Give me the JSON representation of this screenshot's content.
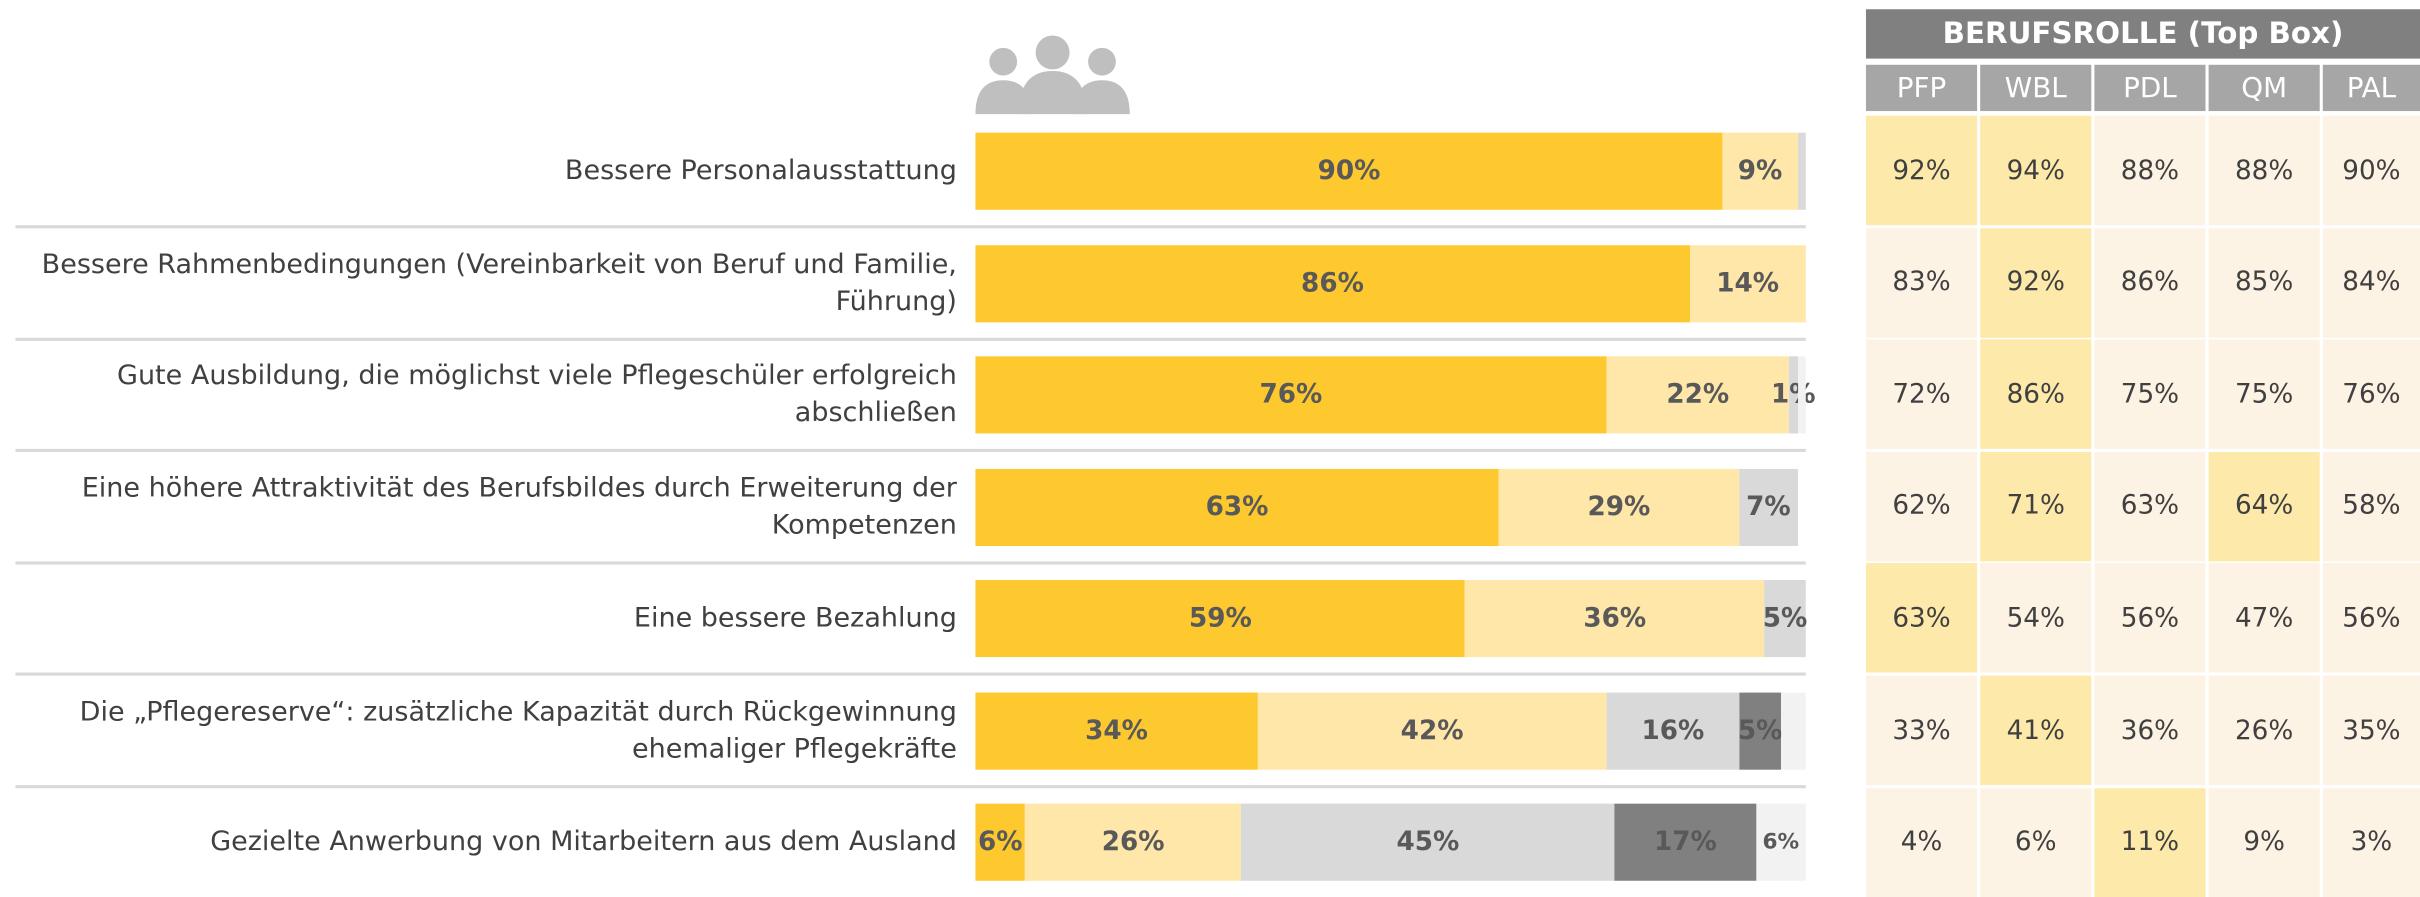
{
  "chart_data": {
    "type": "bar",
    "orientation": "horizontal",
    "stacked": true,
    "categories": [
      "Bessere Personalausstattung",
      "Bessere Rahmenbedingungen (Vereinbarkeit von Beruf und Familie, Führung)",
      "Gute Ausbildung, die möglichst viele Pflegeschüler erfolgreich abschließen",
      "Eine höhere Attraktivität des Berufsbildes durch Erweiterung der Kompetenzen",
      "Eine bessere Bezahlung",
      "Die „Pflegereserve“: zusätzliche Kapazität durch Rückgewinnung ehemaliger Pflegekräfte",
      "Gezielte Anwerbung von Mitarbeitern aus dem Ausland"
    ],
    "xlim": [
      0,
      100
    ],
    "series": [
      {
        "color": "#fec92e",
        "values": [
          90,
          86,
          76,
          63,
          59,
          34,
          6
        ],
        "value_labels": [
          "90%",
          "86%",
          "76%",
          "63%",
          "59%",
          "34%",
          "6%"
        ]
      },
      {
        "color": "#fee7a8",
        "values": [
          9,
          14,
          22,
          29,
          36,
          42,
          26
        ],
        "value_labels": [
          "9%",
          "14%",
          "22%",
          "29%",
          "36%",
          "42%",
          "26%"
        ]
      },
      {
        "color": "#d9d9d9",
        "values": [
          1,
          0,
          1,
          7,
          5,
          16,
          45
        ],
        "value_labels": [
          null,
          null,
          "1%",
          "7%",
          "5%",
          "16%",
          "45%"
        ]
      },
      {
        "color": "#808080",
        "values": [
          0,
          0,
          0,
          0,
          0,
          5,
          17
        ],
        "value_labels": [
          null,
          null,
          null,
          null,
          null,
          "5%",
          "17%"
        ]
      },
      {
        "color": "#f2f2f2",
        "values": [
          0,
          0,
          1,
          0,
          0,
          3,
          6
        ],
        "value_labels": [
          null,
          null,
          null,
          null,
          null,
          null,
          "6%"
        ]
      }
    ]
  },
  "table": {
    "title": "BERUFSROLLE (Top Box)",
    "columns": [
      "PFP",
      "WBL",
      "PDL",
      "QM",
      "PAL"
    ],
    "rows": [
      [
        "92%",
        "94%",
        "88%",
        "88%",
        "90%"
      ],
      [
        "83%",
        "92%",
        "86%",
        "85%",
        "84%"
      ],
      [
        "72%",
        "86%",
        "75%",
        "75%",
        "76%"
      ],
      [
        "62%",
        "71%",
        "63%",
        "64%",
        "58%"
      ],
      [
        "63%",
        "54%",
        "56%",
        "47%",
        "56%"
      ],
      [
        "33%",
        "41%",
        "36%",
        "26%",
        "35%"
      ],
      [
        "4%",
        "6%",
        "11%",
        "9%",
        "3%"
      ]
    ],
    "highlight": [
      [
        true,
        true,
        false,
        false,
        false
      ],
      [
        false,
        true,
        false,
        false,
        false
      ],
      [
        false,
        true,
        false,
        false,
        false
      ],
      [
        false,
        true,
        false,
        true,
        false
      ],
      [
        true,
        false,
        false,
        false,
        false
      ],
      [
        false,
        true,
        false,
        false,
        false
      ],
      [
        false,
        false,
        true,
        false,
        false
      ]
    ],
    "cell_color": "#fdf3e4",
    "highlight_color": "#fde9a9"
  }
}
